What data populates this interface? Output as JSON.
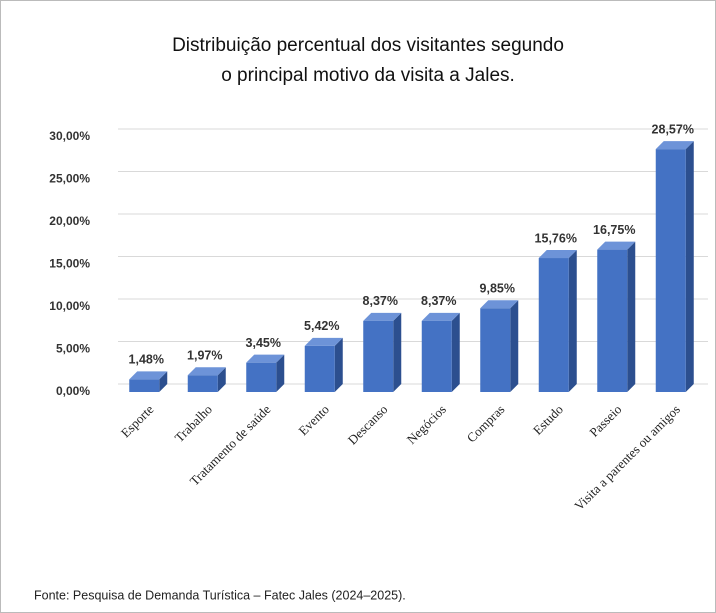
{
  "chart_data": {
    "type": "bar",
    "title": [
      "Distribuição percentual dos visitantes segundo",
      "o principal motivo da visita a Jales."
    ],
    "categories": [
      "Esporte",
      "Trabalho",
      "Tratamento de saúde",
      "Evento",
      "Descanso",
      "Negócios",
      "Compras",
      "Estudo",
      "Passeio",
      "Visita a parentes ou amigos"
    ],
    "values": [
      1.48,
      1.97,
      3.45,
      5.42,
      8.37,
      8.37,
      9.85,
      15.76,
      16.75,
      28.57
    ],
    "value_labels": [
      "1,48%",
      "1,97%",
      "3,45%",
      "5,42%",
      "8,37%",
      "8,37%",
      "9,85%",
      "15,76%",
      "16,75%",
      "28,57%"
    ],
    "color": "#4472c4",
    "ylim": [
      0,
      30
    ],
    "yticks": [
      {
        "value": 0,
        "label": "0,00%"
      },
      {
        "value": 5,
        "label": "5,00%"
      },
      {
        "value": 10,
        "label": "10,00%"
      },
      {
        "value": 15,
        "label": "15,00%"
      },
      {
        "value": 20,
        "label": "20,00%"
      },
      {
        "value": 25,
        "label": "25,00%"
      },
      {
        "value": 30,
        "label": "30,00%"
      }
    ],
    "grid": true,
    "source": "Fonte: Pesquisa de Demanda Turística – Fatec Jales (2024–2025)."
  }
}
